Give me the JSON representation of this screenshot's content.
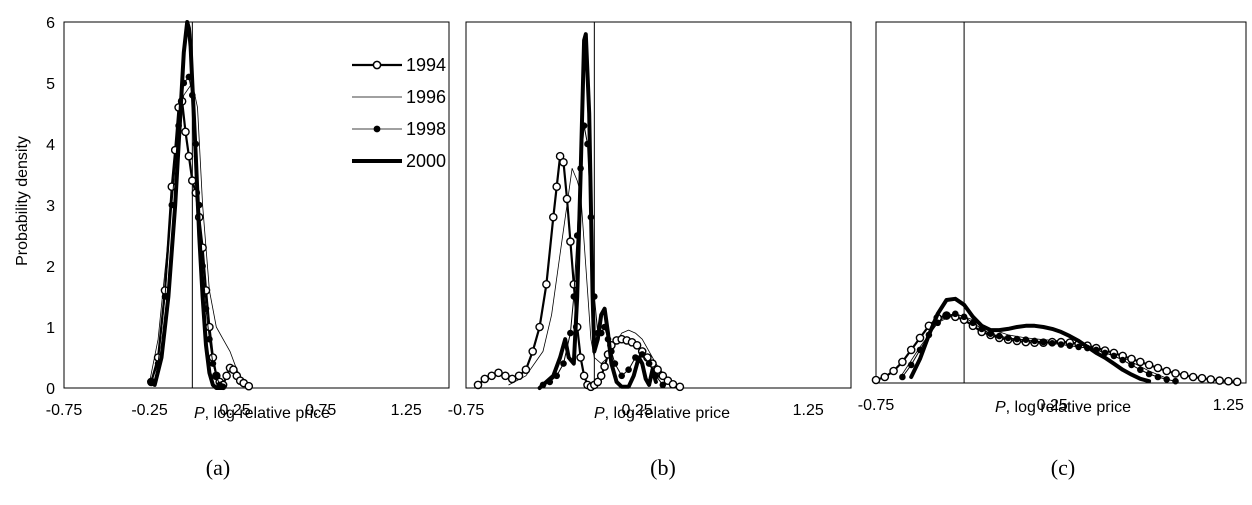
{
  "figure": {
    "ylabel": "Probability density",
    "panel_labels": [
      "(a)",
      "(b)",
      "(c)"
    ]
  },
  "legend": {
    "entries": [
      {
        "label": "1994",
        "style": "open-circles"
      },
      {
        "label": "1996",
        "style": "thin-line"
      },
      {
        "label": "1998",
        "style": "filled-dots"
      },
      {
        "label": "2000",
        "style": "thick-line"
      }
    ]
  },
  "chart_data": [
    {
      "type": "line",
      "panel": "(a)",
      "xlabel": "P, log relative price",
      "xlabel_italic_prefix": "P",
      "xlabel_suffix": ", log relative price",
      "xlim": [
        -0.75,
        1.5
      ],
      "ylim": [
        0,
        6
      ],
      "xticks": [
        "-0.75",
        "-0.25",
        "0.25",
        "0.75",
        "1.25"
      ],
      "yticks": [
        "0",
        "1",
        "2",
        "3",
        "4",
        "5",
        "6"
      ],
      "reference_line_x": 0.0,
      "series": [
        {
          "name": "1994",
          "style": "open-circles",
          "x": [
            -0.24,
            -0.2,
            -0.16,
            -0.12,
            -0.1,
            -0.08,
            -0.06,
            -0.04,
            -0.02,
            0.0,
            0.02,
            0.04,
            0.06,
            0.08,
            0.1,
            0.12,
            0.14,
            0.16,
            0.18,
            0.2,
            0.22,
            0.24,
            0.26,
            0.28,
            0.3,
            0.33
          ],
          "y": [
            0.1,
            0.5,
            1.6,
            3.3,
            3.9,
            4.6,
            4.7,
            4.2,
            3.8,
            3.4,
            3.2,
            2.8,
            2.3,
            1.6,
            1.0,
            0.5,
            0.2,
            0.1,
            0.05,
            0.2,
            0.33,
            0.3,
            0.2,
            0.12,
            0.08,
            0.03
          ]
        },
        {
          "name": "1996",
          "style": "thin-line",
          "x": [
            -0.25,
            -0.2,
            -0.15,
            -0.1,
            -0.05,
            0.0,
            0.03,
            0.06,
            0.1,
            0.14,
            0.18,
            0.22,
            0.26,
            0.3,
            0.35
          ],
          "y": [
            0.1,
            0.8,
            2.2,
            3.8,
            4.8,
            5.0,
            4.6,
            3.0,
            1.6,
            1.0,
            0.8,
            0.6,
            0.3,
            0.1,
            0.02
          ]
        },
        {
          "name": "1998",
          "style": "filled-dots",
          "x": [
            -0.24,
            -0.2,
            -0.16,
            -0.12,
            -0.08,
            -0.05,
            -0.02,
            0.0,
            0.02,
            0.04,
            0.06,
            0.08,
            0.1,
            0.12,
            0.14,
            0.16,
            0.18
          ],
          "y": [
            0.1,
            0.4,
            1.5,
            3.0,
            4.3,
            5.0,
            5.1,
            4.8,
            4.0,
            3.0,
            2.0,
            1.3,
            0.8,
            0.4,
            0.2,
            0.05,
            0.02
          ]
        },
        {
          "name": "2000",
          "style": "thick-line",
          "x": [
            -0.22,
            -0.18,
            -0.14,
            -0.1,
            -0.07,
            -0.05,
            -0.03,
            -0.02,
            -0.01,
            0.0,
            0.02,
            0.04,
            0.06,
            0.08,
            0.1,
            0.12,
            0.14,
            0.16,
            0.18
          ],
          "y": [
            0.05,
            0.5,
            1.5,
            3.0,
            4.5,
            5.5,
            6.0,
            5.9,
            5.6,
            5.0,
            3.8,
            2.5,
            1.5,
            0.7,
            0.25,
            0.05,
            0.0,
            0.0,
            0.0
          ]
        }
      ]
    },
    {
      "type": "line",
      "panel": "(b)",
      "xlabel": "P, log relative price",
      "xlabel_italic_prefix": "P",
      "xlabel_suffix": ", log relative price",
      "xlim": [
        -0.75,
        1.5
      ],
      "ylim": [
        0,
        6
      ],
      "xticks": [
        "-0.75",
        "0.25",
        "1.25"
      ],
      "yticks": [],
      "reference_line_x": 0.0,
      "series": [
        {
          "name": "1994",
          "style": "open-circles",
          "x": [
            -0.68,
            -0.64,
            -0.6,
            -0.56,
            -0.52,
            -0.48,
            -0.44,
            -0.4,
            -0.36,
            -0.32,
            -0.28,
            -0.24,
            -0.22,
            -0.2,
            -0.18,
            -0.16,
            -0.14,
            -0.12,
            -0.1,
            -0.08,
            -0.06,
            -0.04,
            -0.02,
            0.0,
            0.02,
            0.04,
            0.06,
            0.08,
            0.1,
            0.13,
            0.16,
            0.19,
            0.22,
            0.25,
            0.28,
            0.31,
            0.34,
            0.37,
            0.4,
            0.43,
            0.46,
            0.5
          ],
          "y": [
            0.05,
            0.15,
            0.2,
            0.25,
            0.2,
            0.15,
            0.2,
            0.3,
            0.6,
            1.0,
            1.7,
            2.8,
            3.3,
            3.8,
            3.7,
            3.1,
            2.4,
            1.7,
            1.0,
            0.5,
            0.2,
            0.05,
            0.02,
            0.05,
            0.1,
            0.2,
            0.35,
            0.55,
            0.7,
            0.78,
            0.8,
            0.78,
            0.75,
            0.7,
            0.6,
            0.5,
            0.4,
            0.3,
            0.2,
            0.12,
            0.06,
            0.02
          ]
        },
        {
          "name": "1996",
          "style": "thin-line",
          "x": [
            -0.5,
            -0.4,
            -0.3,
            -0.25,
            -0.2,
            -0.16,
            -0.13,
            -0.1,
            -0.08,
            -0.05,
            -0.02,
            0.0,
            0.04,
            0.08,
            0.12,
            0.16,
            0.2,
            0.24,
            0.28,
            0.32,
            0.36,
            0.4,
            0.45,
            0.5
          ],
          "y": [
            0.05,
            0.2,
            0.6,
            1.2,
            2.2,
            3.0,
            3.6,
            3.4,
            3.2,
            2.0,
            0.8,
            0.5,
            0.4,
            0.5,
            0.7,
            0.9,
            0.95,
            0.9,
            0.8,
            0.6,
            0.4,
            0.25,
            0.1,
            0.03
          ]
        },
        {
          "name": "1998",
          "style": "filled-dots",
          "x": [
            -0.3,
            -0.26,
            -0.22,
            -0.18,
            -0.14,
            -0.12,
            -0.1,
            -0.08,
            -0.06,
            -0.04,
            -0.02,
            0.0,
            0.02,
            0.04,
            0.06,
            0.08,
            0.1,
            0.12,
            0.16,
            0.2,
            0.24,
            0.28,
            0.32,
            0.36,
            0.4
          ],
          "y": [
            0.05,
            0.1,
            0.2,
            0.4,
            0.9,
            1.5,
            2.5,
            3.6,
            4.3,
            4.0,
            2.8,
            1.5,
            0.9,
            0.9,
            1.0,
            0.8,
            0.6,
            0.4,
            0.2,
            0.3,
            0.5,
            0.55,
            0.4,
            0.2,
            0.05
          ]
        },
        {
          "name": "2000",
          "style": "thick-line",
          "x": [
            -0.32,
            -0.28,
            -0.24,
            -0.2,
            -0.17,
            -0.15,
            -0.12,
            -0.1,
            -0.08,
            -0.06,
            -0.05,
            -0.03,
            -0.01,
            0.0,
            0.02,
            0.04,
            0.06,
            0.08,
            0.1,
            0.13,
            0.16,
            0.2,
            0.23,
            0.26,
            0.28,
            0.3,
            0.32,
            0.34,
            0.36
          ],
          "y": [
            0.0,
            0.1,
            0.2,
            0.5,
            0.8,
            0.5,
            0.4,
            1.5,
            3.5,
            5.7,
            5.8,
            4.5,
            1.5,
            0.6,
            0.8,
            1.2,
            1.3,
            0.9,
            0.4,
            0.1,
            0.02,
            0.02,
            0.2,
            0.5,
            0.4,
            0.15,
            0.05,
            0.3,
            0.1
          ]
        }
      ]
    },
    {
      "type": "line",
      "panel": "(c)",
      "xlabel": "P, log relative price",
      "xlabel_italic_prefix": "P",
      "xlabel_suffix": ", log relative price",
      "xlim": [
        -0.75,
        1.35
      ],
      "ylim": [
        0,
        6
      ],
      "xticks": [
        "-0.75",
        "0.25",
        "1.25"
      ],
      "yticks": [],
      "reference_line_x": -0.25,
      "series": [
        {
          "name": "1994",
          "style": "open-circles",
          "x": [
            -0.75,
            -0.7,
            -0.65,
            -0.6,
            -0.55,
            -0.5,
            -0.45,
            -0.4,
            -0.35,
            -0.3,
            -0.25,
            -0.2,
            -0.15,
            -0.1,
            -0.05,
            0.0,
            0.05,
            0.1,
            0.15,
            0.2,
            0.25,
            0.3,
            0.35,
            0.4,
            0.45,
            0.5,
            0.55,
            0.6,
            0.65,
            0.7,
            0.75,
            0.8,
            0.85,
            0.9,
            0.95,
            1.0,
            1.05,
            1.1,
            1.15,
            1.2,
            1.25,
            1.3
          ],
          "y": [
            0.05,
            0.1,
            0.2,
            0.35,
            0.55,
            0.75,
            0.95,
            1.08,
            1.12,
            1.1,
            1.05,
            0.95,
            0.85,
            0.8,
            0.75,
            0.72,
            0.7,
            0.68,
            0.67,
            0.67,
            0.68,
            0.68,
            0.67,
            0.65,
            0.62,
            0.58,
            0.54,
            0.5,
            0.45,
            0.4,
            0.35,
            0.3,
            0.25,
            0.2,
            0.16,
            0.13,
            0.1,
            0.08,
            0.06,
            0.04,
            0.03,
            0.02
          ]
        },
        {
          "name": "1996",
          "style": "thin-line",
          "x": [
            -0.6,
            -0.5,
            -0.4,
            -0.3,
            -0.2,
            -0.1,
            0.0,
            0.1,
            0.2,
            0.3,
            0.4,
            0.5,
            0.6,
            0.7,
            0.8,
            0.9
          ],
          "y": [
            0.15,
            0.6,
            1.0,
            1.15,
            1.05,
            0.9,
            0.8,
            0.75,
            0.72,
            0.7,
            0.66,
            0.6,
            0.5,
            0.35,
            0.2,
            0.08
          ]
        },
        {
          "name": "1998",
          "style": "filled-dots",
          "x": [
            -0.6,
            -0.55,
            -0.5,
            -0.45,
            -0.4,
            -0.35,
            -0.3,
            -0.25,
            -0.2,
            -0.15,
            -0.1,
            -0.05,
            0.0,
            0.05,
            0.1,
            0.15,
            0.2,
            0.25,
            0.3,
            0.35,
            0.4,
            0.45,
            0.5,
            0.55,
            0.6,
            0.65,
            0.7,
            0.75,
            0.8,
            0.85,
            0.9,
            0.95
          ],
          "y": [
            0.1,
            0.3,
            0.55,
            0.8,
            1.0,
            1.12,
            1.15,
            1.1,
            1.0,
            0.9,
            0.82,
            0.78,
            0.75,
            0.73,
            0.72,
            0.7,
            0.68,
            0.66,
            0.64,
            0.62,
            0.6,
            0.58,
            0.55,
            0.5,
            0.45,
            0.38,
            0.3,
            0.22,
            0.15,
            0.1,
            0.06,
            0.03
          ]
        },
        {
          "name": "2000",
          "style": "thick-line",
          "x": [
            -0.55,
            -0.5,
            -0.45,
            -0.4,
            -0.35,
            -0.3,
            -0.25,
            -0.2,
            -0.15,
            -0.1,
            -0.05,
            0.0,
            0.05,
            0.1,
            0.15,
            0.2,
            0.25,
            0.3,
            0.35,
            0.4,
            0.45,
            0.5,
            0.55,
            0.6,
            0.65,
            0.7,
            0.75,
            0.8
          ],
          "y": [
            0.1,
            0.4,
            0.8,
            1.15,
            1.38,
            1.4,
            1.3,
            1.1,
            0.95,
            0.88,
            0.88,
            0.9,
            0.93,
            0.95,
            0.95,
            0.93,
            0.9,
            0.85,
            0.78,
            0.7,
            0.6,
            0.5,
            0.42,
            0.32,
            0.22,
            0.14,
            0.07,
            0.03
          ]
        }
      ]
    }
  ]
}
